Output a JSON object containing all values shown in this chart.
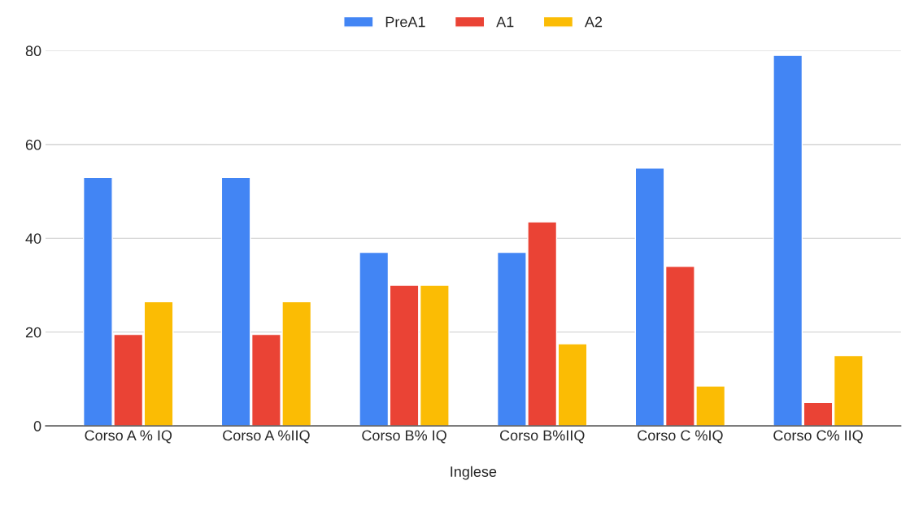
{
  "chart_data": {
    "type": "bar",
    "xlabel": "Inglese",
    "categories": [
      "Corso A % IQ",
      "Corso A %IIQ",
      "Corso B% IQ",
      "Corso B%IIQ",
      "Corso C %IQ",
      "Corso C% IIQ"
    ],
    "series": [
      {
        "name": "PreA1",
        "color": "#4285f4",
        "values": [
          53,
          53,
          37,
          37,
          55,
          79
        ]
      },
      {
        "name": "A1",
        "color": "#ea4335",
        "values": [
          19.5,
          19.5,
          30,
          43.5,
          34,
          5
        ]
      },
      {
        "name": "A2",
        "color": "#fbbc04",
        "values": [
          26.5,
          26.5,
          30,
          17.5,
          8.5,
          15
        ]
      }
    ],
    "ylim": [
      0,
      80
    ],
    "yticks": [
      0,
      20,
      40,
      60,
      80
    ],
    "grid": "y",
    "legend": "top"
  }
}
